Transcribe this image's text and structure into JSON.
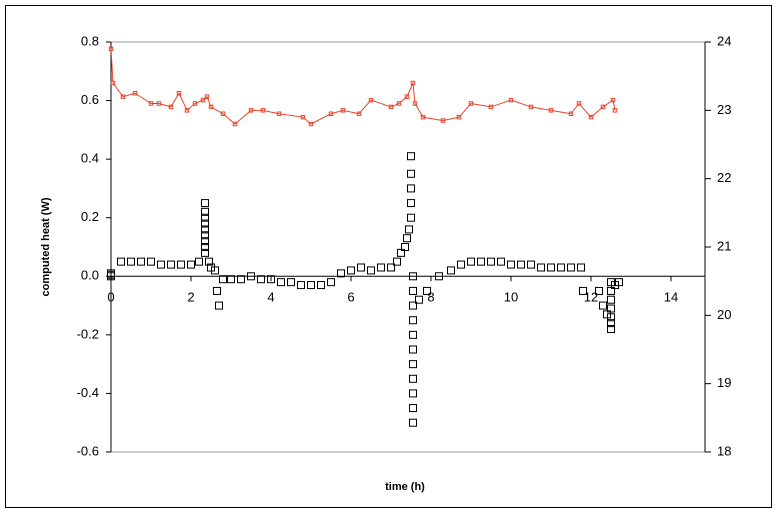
{
  "chart_data": {
    "type": "scatter",
    "x_label": "time (h)",
    "y_label": "computed heat (W)",
    "xlim": [
      0,
      14.85
    ],
    "xticks": [
      0,
      2,
      4,
      6,
      8,
      10,
      12,
      14
    ],
    "ylim": [
      -0.6,
      0.8
    ],
    "yticks": [
      0.8,
      0.6,
      0.4,
      0.2,
      {
        "value": 0,
        "label": "0.0"
      },
      -0.2,
      -0.4,
      -0.6
    ],
    "y2lim": [
      18,
      24
    ],
    "y2ticks": [
      24,
      23,
      22,
      21,
      20,
      19,
      18
    ],
    "series": [
      {
        "color": "#000000",
        "marker": "square",
        "line": false,
        "x": [
          0,
          0,
          0,
          0.25,
          0.5,
          0.75,
          1.0,
          1.25,
          1.5,
          1.75,
          2.0,
          2.2,
          2.35,
          2.35,
          2.35,
          2.35,
          2.35,
          2.35,
          2.35,
          2.35,
          2.35,
          2.45,
          2.5,
          2.6,
          2.65,
          2.7,
          2.8,
          3.0,
          3.25,
          3.5,
          3.75,
          4.0,
          4.25,
          4.5,
          4.75,
          5.0,
          5.25,
          5.5,
          5.75,
          6.0,
          6.25,
          6.5,
          6.75,
          7.0,
          7.15,
          7.25,
          7.35,
          7.4,
          7.45,
          7.5,
          7.5,
          7.5,
          7.5,
          7.5,
          7.55,
          7.55,
          7.55,
          7.55,
          7.55,
          7.55,
          7.55,
          7.55,
          7.55,
          7.55,
          7.55,
          7.7,
          7.9,
          8.2,
          8.5,
          8.75,
          9.0,
          9.25,
          9.5,
          9.75,
          10.0,
          10.25,
          10.5,
          10.75,
          11.0,
          11.25,
          11.5,
          11.75,
          11.8,
          12.2,
          12.3,
          12.4,
          12.5,
          12.5,
          12.5,
          12.5,
          12.5,
          12.5,
          12.5,
          12.6,
          12.7
        ],
        "values": [
          0.0,
          0.01,
          0.005,
          0.05,
          0.05,
          0.05,
          0.05,
          0.04,
          0.04,
          0.04,
          0.04,
          0.05,
          0.08,
          0.1,
          0.12,
          0.14,
          0.16,
          0.18,
          0.2,
          0.22,
          0.25,
          0.05,
          0.03,
          0.02,
          -0.05,
          -0.1,
          -0.01,
          -0.01,
          -0.01,
          0.0,
          -0.01,
          -0.01,
          -0.02,
          -0.02,
          -0.03,
          -0.03,
          -0.03,
          -0.02,
          0.01,
          0.02,
          0.03,
          0.02,
          0.03,
          0.03,
          0.05,
          0.08,
          0.1,
          0.13,
          0.16,
          0.2,
          0.25,
          0.3,
          0.35,
          0.41,
          0.0,
          -0.05,
          -0.1,
          -0.15,
          -0.2,
          -0.25,
          -0.3,
          -0.35,
          -0.4,
          -0.45,
          -0.5,
          -0.08,
          -0.05,
          0.0,
          0.02,
          0.04,
          0.05,
          0.05,
          0.05,
          0.05,
          0.04,
          0.04,
          0.04,
          0.03,
          0.03,
          0.03,
          0.03,
          0.03,
          -0.05,
          -0.05,
          -0.1,
          -0.13,
          -0.02,
          -0.05,
          -0.08,
          -0.11,
          -0.14,
          -0.16,
          -0.18,
          -0.03,
          -0.02
        ]
      },
      {
        "color": "#e8432a",
        "marker": "small-square",
        "line": true,
        "axis": "y2",
        "x": [
          0,
          0.05,
          0.3,
          0.6,
          1.0,
          1.2,
          1.5,
          1.7,
          1.9,
          2.1,
          2.3,
          2.4,
          2.5,
          2.8,
          3.1,
          3.5,
          3.8,
          4.2,
          4.8,
          5.0,
          5.5,
          5.8,
          6.2,
          6.5,
          7.0,
          7.2,
          7.4,
          7.55,
          7.6,
          7.8,
          8.3,
          8.7,
          9.0,
          9.5,
          10.0,
          10.5,
          11.0,
          11.5,
          11.7,
          12.0,
          12.3,
          12.55,
          12.6
        ],
        "values": [
          23.9,
          23.4,
          23.2,
          23.25,
          23.1,
          23.1,
          23.05,
          23.25,
          23.0,
          23.1,
          23.15,
          23.2,
          23.05,
          22.95,
          22.8,
          23.0,
          23.0,
          22.95,
          22.9,
          22.8,
          22.95,
          23.0,
          22.95,
          23.15,
          23.05,
          23.1,
          23.2,
          23.4,
          23.1,
          22.9,
          22.85,
          22.9,
          23.1,
          23.05,
          23.15,
          23.05,
          23.0,
          22.95,
          23.1,
          22.9,
          23.05,
          23.15,
          23.0
        ]
      }
    ]
  }
}
